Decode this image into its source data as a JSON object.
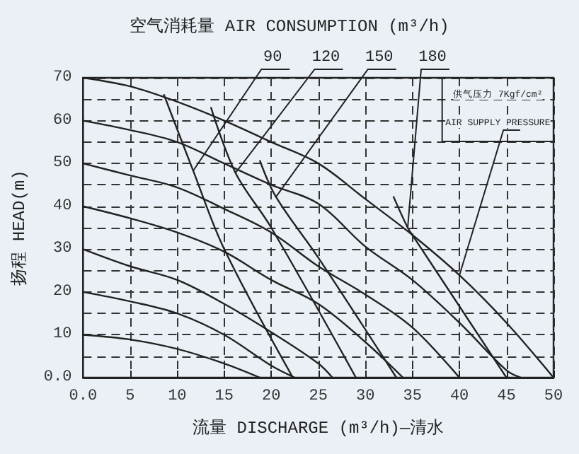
{
  "chart_data": {
    "type": "line",
    "title": "空气消耗量 AIR CONSUMPTION (m³/h)",
    "xlabel": "流量 DISCHARGE (m³/h)—清水",
    "ylabel": "扬程 HEAD(m)",
    "series": [
      {
        "color": "#222222",
        "x": [
          0,
          5,
          10,
          15,
          20,
          25,
          30,
          35,
          40,
          45,
          50
        ],
        "values": [
          70,
          68,
          64.4,
          60,
          55,
          50,
          41.7,
          33.3,
          23.9,
          12.8,
          0
        ]
      },
      {
        "color": "#222222",
        "x": [
          0,
          5,
          10,
          15,
          20,
          25,
          30,
          35,
          40,
          45,
          46.5
        ],
        "values": [
          60,
          57.8,
          55,
          50,
          45,
          40.6,
          30.6,
          22.8,
          12.8,
          1.7,
          0
        ]
      },
      {
        "color": "#222222",
        "x": [
          0,
          5,
          10,
          15,
          20,
          25,
          30,
          35,
          40
        ],
        "values": [
          50,
          47.2,
          44.4,
          39.4,
          33.9,
          26,
          19.4,
          11.7,
          0
        ]
      },
      {
        "color": "#222222",
        "x": [
          0,
          5,
          10,
          15,
          20,
          25,
          30,
          34
        ],
        "values": [
          40,
          37.2,
          33.9,
          29.4,
          22.8,
          17.2,
          8.3,
          0
        ]
      },
      {
        "color": "#222222",
        "x": [
          0,
          5,
          10,
          15,
          20,
          25,
          26.5
        ],
        "values": [
          30,
          26,
          22.8,
          17.2,
          10.6,
          3.3,
          0
        ]
      },
      {
        "color": "#222222",
        "x": [
          0,
          5,
          10,
          15,
          20,
          22.5
        ],
        "values": [
          20,
          17.8,
          15,
          10,
          2.8,
          0
        ]
      },
      {
        "color": "#222222",
        "x": [
          0,
          5,
          10,
          15,
          18.8
        ],
        "values": [
          10,
          8.9,
          6.7,
          3.3,
          0
        ]
      },
      {
        "color": "#222222",
        "x": [
          8.6,
          11.7,
          15,
          22.3
        ],
        "values": [
          66,
          48.3,
          30,
          0
        ]
      },
      {
        "color": "#222222",
        "x": [
          13.6,
          16.2,
          20,
          29
        ],
        "values": [
          63,
          47.8,
          35,
          0
        ]
      },
      {
        "color": "#222222",
        "x": [
          18.8,
          20.5,
          25,
          33.3
        ],
        "values": [
          50.6,
          42.2,
          28,
          0
        ]
      },
      {
        "color": "#222222",
        "x": [
          33,
          34.5,
          35,
          45
        ],
        "values": [
          42.2,
          35,
          33.3,
          0
        ]
      }
    ],
    "annotations": [
      {
        "text": "90",
        "x": 11.7,
        "y": 48.3
      },
      {
        "text": "120",
        "x": 16.2,
        "y": 47.8
      },
      {
        "text": "150",
        "x": 20.5,
        "y": 42.2
      },
      {
        "text": "180",
        "x": 34.5,
        "y": 35
      },
      "供气压力 7Kgf/cm²",
      {
        "text": "AIR SUPPLY PRESSURE",
        "x": 40,
        "y": 23.9
      }
    ],
    "xlim": [
      0,
      50
    ],
    "ylim": [
      0,
      70
    ],
    "xticks": [
      {
        "value": 0,
        "label": "0.0"
      },
      5,
      10,
      15,
      20,
      25,
      30,
      35,
      40,
      45,
      50
    ],
    "yticks": [
      {
        "value": 0,
        "label": "0.0"
      },
      {
        "value": 5,
        "label": null
      },
      10,
      {
        "value": 15,
        "label": null
      },
      20,
      {
        "value": 25,
        "label": null
      },
      30,
      {
        "value": 35,
        "label": null
      },
      40,
      {
        "value": 45,
        "label": null
      },
      50,
      {
        "value": 55,
        "label": null
      },
      60,
      {
        "value": 65,
        "label": null
      },
      70
    ],
    "grid": true,
    "marker": "none",
    "line_style": "solid"
  }
}
